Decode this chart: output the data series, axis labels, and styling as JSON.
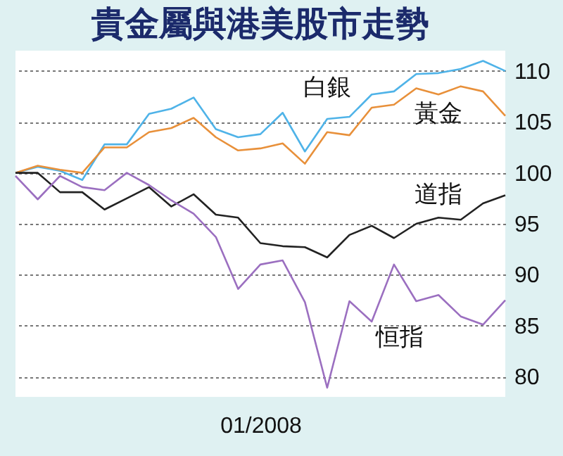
{
  "chart_data": {
    "type": "line",
    "title": "貴金屬與港美股市走勢",
    "categories": [
      null,
      null,
      null,
      null,
      null,
      null,
      null,
      null,
      null,
      null,
      null,
      "01/2008",
      null,
      null,
      null,
      null,
      null,
      null,
      null,
      null,
      null,
      null,
      null
    ],
    "series": [
      {
        "name": "白銀",
        "color": "#4fb3e8",
        "values": [
          100,
          100.6,
          100.2,
          99.3,
          102.8,
          102.8,
          105.8,
          106.3,
          107.4,
          104.3,
          103.5,
          103.8,
          105.9,
          102.1,
          105.3,
          105.5,
          107.7,
          108,
          109.7,
          109.8,
          110.2,
          111,
          110
        ]
      },
      {
        "name": "黃金",
        "color": "#e8903a",
        "values": [
          100,
          100.7,
          100.3,
          100,
          102.5,
          102.5,
          104,
          104.4,
          105.4,
          103.5,
          102.2,
          102.4,
          102.9,
          100.9,
          104,
          103.7,
          106.4,
          106.7,
          108.3,
          107.7,
          108.5,
          108,
          105.6
        ]
      },
      {
        "name": "道指",
        "color": "#222222",
        "values": [
          100,
          100,
          98.1,
          98.1,
          96.4,
          97.5,
          98.6,
          96.7,
          97.9,
          95.9,
          95.6,
          93.1,
          92.8,
          92.7,
          91.7,
          93.9,
          94.8,
          93.6,
          95,
          95.6,
          95.4,
          97,
          97.8
        ]
      },
      {
        "name": "恒指",
        "color": "#9b6fc0",
        "values": [
          99.7,
          97.4,
          99.7,
          98.6,
          98.3,
          100,
          98.8,
          97.3,
          96,
          93.7,
          88.6,
          91,
          91.4,
          87.3,
          78.9,
          87.4,
          85.4,
          91,
          87.4,
          88,
          85.9,
          85.1,
          87.5
        ]
      }
    ],
    "ylim": [
      78,
      112
    ],
    "yticks": [
      80,
      85,
      90,
      95,
      100,
      105,
      110
    ],
    "grid": "y",
    "legend": false,
    "marker": "none",
    "line_style": "solid"
  }
}
